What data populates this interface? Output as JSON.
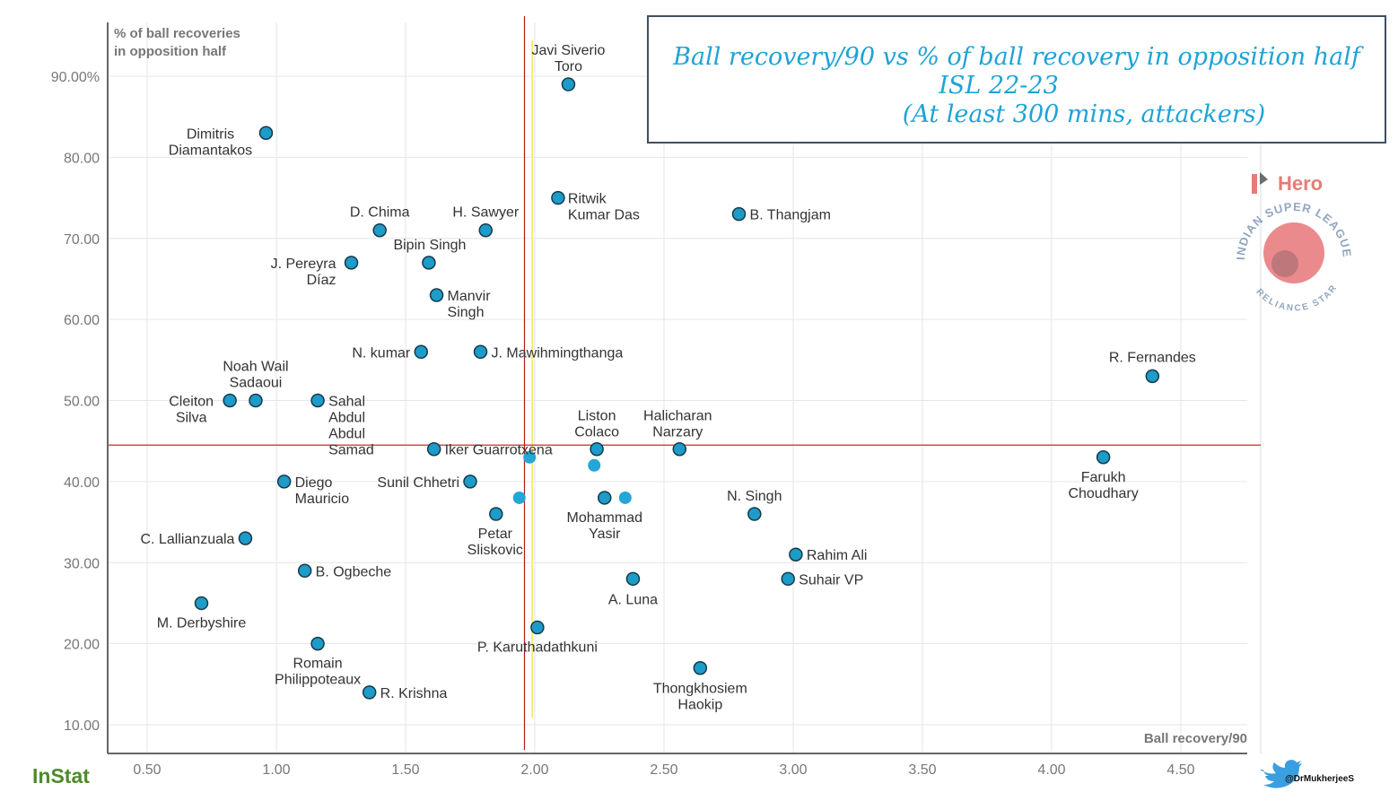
{
  "chart_data": {
    "type": "scatter",
    "title_lines": [
      "Ball recovery/90 vs % of ball recovery in opposition half",
      "ISL 22-23",
      "(At least 300 mins, attackers)"
    ],
    "xlabel": "Ball recovery/90",
    "ylabel_lines": [
      "% of ball recoveries",
      "in opposition half"
    ],
    "xlim": [
      0.35,
      4.75
    ],
    "ylim": [
      6.5,
      92
    ],
    "x_ticks": [
      "0.50",
      "1.00",
      "1.50",
      "2.00",
      "2.50",
      "3.00",
      "3.50",
      "4.00",
      "4.50"
    ],
    "x_tick_values": [
      0.5,
      1.0,
      1.5,
      2.0,
      2.5,
      3.0,
      3.5,
      4.0,
      4.5
    ],
    "y_ticks": [
      "10.00",
      "20.00",
      "30.00",
      "40.00",
      "50.00",
      "60.00",
      "70.00",
      "80.00",
      "90.00%"
    ],
    "y_tick_values": [
      10,
      20,
      30,
      40,
      50,
      60,
      70,
      80,
      90
    ],
    "grid": true,
    "reference_lines": {
      "vertical_red_x": 1.96,
      "vertical_yellow_x": 1.99,
      "horizontal_red_y": 44.5
    },
    "colors": {
      "point": "#1d9bc9",
      "point_unlabeled": "#22a7d6",
      "ref_red": "#b01c1c",
      "ref_yellow": "#f5ef6a",
      "title": "#1fa3d6"
    },
    "points": [
      {
        "name": [
          "Javi Siverio",
          "Toro"
        ],
        "x": 2.13,
        "y": 89
      },
      {
        "name": [
          "Dimitris",
          "Diamantakos"
        ],
        "x": 0.96,
        "y": 83
      },
      {
        "name": [
          "Ritwik",
          "Kumar Das"
        ],
        "x": 2.09,
        "y": 75
      },
      {
        "name": [
          "B. Thangjam"
        ],
        "x": 2.79,
        "y": 73
      },
      {
        "name": [
          "D. Chima"
        ],
        "x": 1.4,
        "y": 71
      },
      {
        "name": [
          "H. Sawyer"
        ],
        "x": 1.81,
        "y": 71
      },
      {
        "name": [
          "Bipin Singh"
        ],
        "x": 1.59,
        "y": 67
      },
      {
        "name": [
          "J. Pereyra",
          "Díaz"
        ],
        "x": 1.29,
        "y": 67
      },
      {
        "name": [
          "Manvir",
          "Singh"
        ],
        "x": 1.62,
        "y": 63
      },
      {
        "name": [
          "N. kumar"
        ],
        "x": 1.56,
        "y": 56
      },
      {
        "name": [
          "J. Mawihmingthanga"
        ],
        "x": 1.79,
        "y": 56
      },
      {
        "name": [
          "R. Fernandes"
        ],
        "x": 4.39,
        "y": 53
      },
      {
        "name": [
          "Noah Wail",
          "Sadaoui"
        ],
        "x": 0.92,
        "y": 50
      },
      {
        "name": [
          "Cleiton",
          "Silva"
        ],
        "x": 0.82,
        "y": 50
      },
      {
        "name": [
          "Sahal",
          "Abdul",
          "Abdul",
          "Samad"
        ],
        "x": 1.16,
        "y": 50
      },
      {
        "name": [
          "Iker Guarrotxena"
        ],
        "x": 1.61,
        "y": 44
      },
      {
        "name": [
          "Liston",
          "Colaco"
        ],
        "x": 2.24,
        "y": 44
      },
      {
        "name": [
          "Halicharan",
          "Narzary"
        ],
        "x": 2.56,
        "y": 44
      },
      {
        "name": [
          "Farukh",
          "Choudhary"
        ],
        "x": 4.2,
        "y": 43
      },
      {
        "name": [
          "Diego",
          "Mauricio"
        ],
        "x": 1.03,
        "y": 40
      },
      {
        "name": [
          "Sunil Chhetri"
        ],
        "x": 1.75,
        "y": 40
      },
      {
        "name": [
          "Mohammad",
          "Yasir"
        ],
        "x": 2.27,
        "y": 38
      },
      {
        "name": [
          "Petar",
          "Sliskovic"
        ],
        "x": 1.85,
        "y": 36
      },
      {
        "name": [
          "N. Singh"
        ],
        "x": 2.85,
        "y": 36
      },
      {
        "name": [
          "C. Lallianzuala"
        ],
        "x": 0.88,
        "y": 33
      },
      {
        "name": [
          "Rahim Ali"
        ],
        "x": 3.01,
        "y": 31
      },
      {
        "name": [
          "B. Ogbeche"
        ],
        "x": 1.11,
        "y": 29
      },
      {
        "name": [
          "Suhair VP"
        ],
        "x": 2.98,
        "y": 28
      },
      {
        "name": [
          "A. Luna"
        ],
        "x": 2.38,
        "y": 28
      },
      {
        "name": [
          "M. Derbyshire"
        ],
        "x": 0.71,
        "y": 25
      },
      {
        "name": [
          "P. Karuthadathkuni"
        ],
        "x": 2.01,
        "y": 22
      },
      {
        "name": [
          "Romain",
          "Philippoteaux"
        ],
        "x": 1.16,
        "y": 20
      },
      {
        "name": [
          "Thongkhosiem",
          "Haokip"
        ],
        "x": 2.64,
        "y": 17
      },
      {
        "name": [
          "R. Krishna"
        ],
        "x": 1.36,
        "y": 14
      }
    ],
    "unlabeled_points": [
      {
        "x": 1.98,
        "y": 43
      },
      {
        "x": 2.23,
        "y": 42
      },
      {
        "x": 1.94,
        "y": 38
      },
      {
        "x": 2.35,
        "y": 38
      }
    ]
  },
  "branding": {
    "provider": "InStat",
    "league_logo": [
      "Hero",
      "INDIAN SUPER LEAGUE",
      "RELIANCE STAR"
    ],
    "twitter_icon": "twitter-bird-icon",
    "twitter_handle": "@DrMukherjeeS"
  }
}
